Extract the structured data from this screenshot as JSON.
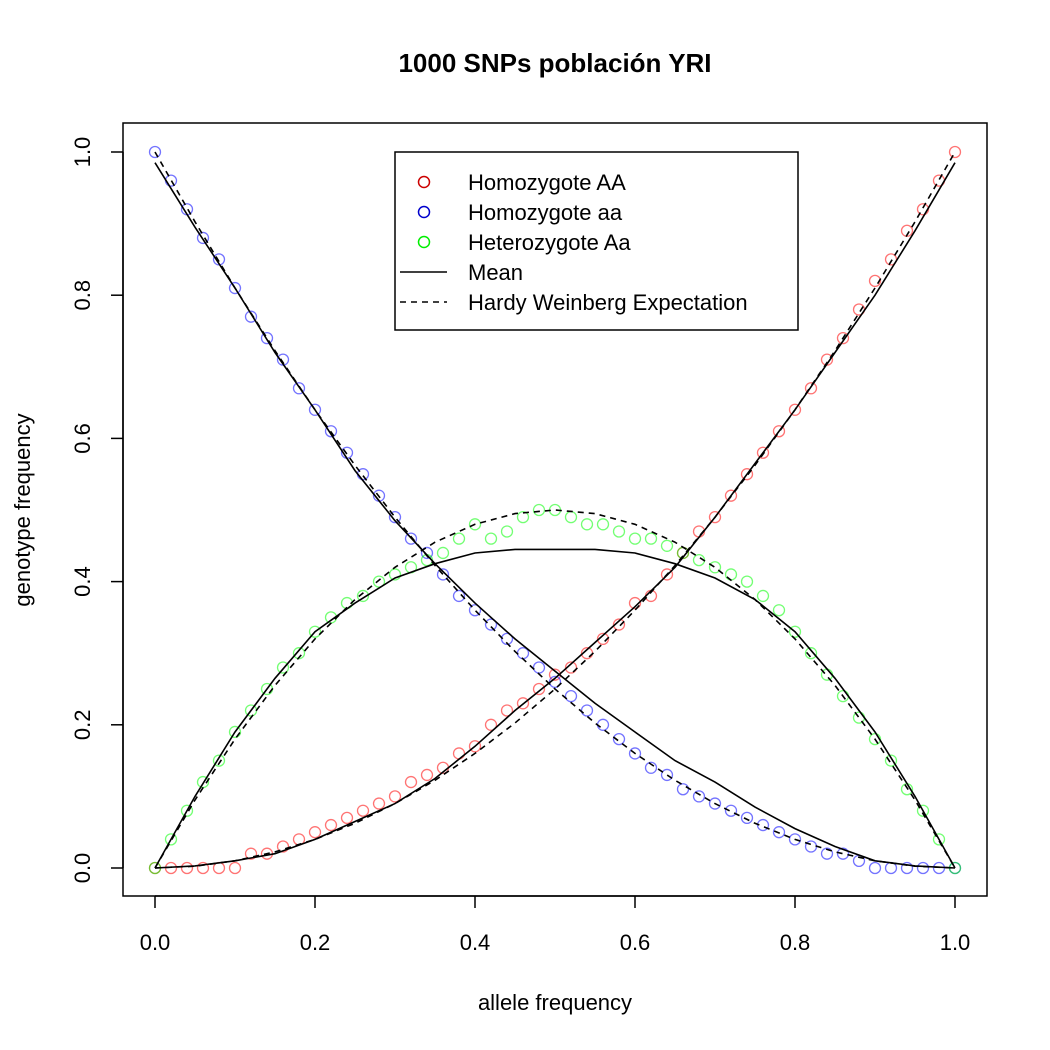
{
  "chart_data": {
    "type": "scatter",
    "title": "1000 SNPs población YRI",
    "xlabel": "allele frequency",
    "ylabel": "genotype frequency",
    "xlim": [
      0.0,
      1.0
    ],
    "ylim": [
      0.0,
      1.0
    ],
    "x_ticks": [
      "0.0",
      "0.2",
      "0.4",
      "0.6",
      "0.8",
      "1.0"
    ],
    "y_ticks": [
      "0.0",
      "0.2",
      "0.4",
      "0.6",
      "0.8",
      "1.0"
    ],
    "grid": false,
    "legend_position": "top-center",
    "legend": [
      {
        "label": "Homozygote AA",
        "kind": "point",
        "color": "#cc0000"
      },
      {
        "label": "Homozygote aa",
        "kind": "point",
        "color": "#0000cc"
      },
      {
        "label": "Heterozygote Aa",
        "kind": "point",
        "color": "#00ee00"
      },
      {
        "label": "Mean",
        "kind": "solid-line",
        "color": "#000000"
      },
      {
        "label": "Hardy Weinberg Expectation",
        "kind": "dashed-line",
        "color": "#000000"
      }
    ],
    "series": [
      {
        "name": "Homozygote AA",
        "color": "#ff0000",
        "points": [
          [
            0.0,
            0.0
          ],
          [
            0.02,
            0.0
          ],
          [
            0.04,
            0.0
          ],
          [
            0.06,
            0.0
          ],
          [
            0.08,
            0.0
          ],
          [
            0.1,
            0.0
          ],
          [
            0.12,
            0.02
          ],
          [
            0.14,
            0.02
          ],
          [
            0.16,
            0.03
          ],
          [
            0.18,
            0.04
          ],
          [
            0.2,
            0.05
          ],
          [
            0.22,
            0.06
          ],
          [
            0.24,
            0.07
          ],
          [
            0.26,
            0.08
          ],
          [
            0.28,
            0.09
          ],
          [
            0.3,
            0.1
          ],
          [
            0.32,
            0.12
          ],
          [
            0.34,
            0.13
          ],
          [
            0.36,
            0.14
          ],
          [
            0.38,
            0.16
          ],
          [
            0.4,
            0.17
          ],
          [
            0.42,
            0.2
          ],
          [
            0.44,
            0.22
          ],
          [
            0.46,
            0.23
          ],
          [
            0.48,
            0.25
          ],
          [
            0.5,
            0.27
          ],
          [
            0.52,
            0.28
          ],
          [
            0.54,
            0.3
          ],
          [
            0.56,
            0.32
          ],
          [
            0.58,
            0.34
          ],
          [
            0.6,
            0.37
          ],
          [
            0.62,
            0.38
          ],
          [
            0.64,
            0.41
          ],
          [
            0.66,
            0.44
          ],
          [
            0.68,
            0.47
          ],
          [
            0.7,
            0.49
          ],
          [
            0.72,
            0.52
          ],
          [
            0.74,
            0.55
          ],
          [
            0.76,
            0.58
          ],
          [
            0.78,
            0.61
          ],
          [
            0.8,
            0.64
          ],
          [
            0.82,
            0.67
          ],
          [
            0.84,
            0.71
          ],
          [
            0.86,
            0.74
          ],
          [
            0.88,
            0.78
          ],
          [
            0.9,
            0.82
          ],
          [
            0.92,
            0.85
          ],
          [
            0.94,
            0.89
          ],
          [
            0.96,
            0.92
          ],
          [
            0.98,
            0.96
          ],
          [
            1.0,
            1.0
          ]
        ]
      },
      {
        "name": "Homozygote aa",
        "color": "#0000ff",
        "points": [
          [
            0.0,
            1.0
          ],
          [
            0.02,
            0.96
          ],
          [
            0.04,
            0.92
          ],
          [
            0.06,
            0.88
          ],
          [
            0.08,
            0.85
          ],
          [
            0.1,
            0.81
          ],
          [
            0.12,
            0.77
          ],
          [
            0.14,
            0.74
          ],
          [
            0.16,
            0.71
          ],
          [
            0.18,
            0.67
          ],
          [
            0.2,
            0.64
          ],
          [
            0.22,
            0.61
          ],
          [
            0.24,
            0.58
          ],
          [
            0.26,
            0.55
          ],
          [
            0.28,
            0.52
          ],
          [
            0.3,
            0.49
          ],
          [
            0.32,
            0.46
          ],
          [
            0.34,
            0.44
          ],
          [
            0.36,
            0.41
          ],
          [
            0.38,
            0.38
          ],
          [
            0.4,
            0.36
          ],
          [
            0.42,
            0.34
          ],
          [
            0.44,
            0.32
          ],
          [
            0.46,
            0.3
          ],
          [
            0.48,
            0.28
          ],
          [
            0.5,
            0.26
          ],
          [
            0.52,
            0.24
          ],
          [
            0.54,
            0.22
          ],
          [
            0.56,
            0.2
          ],
          [
            0.58,
            0.18
          ],
          [
            0.6,
            0.16
          ],
          [
            0.62,
            0.14
          ],
          [
            0.64,
            0.13
          ],
          [
            0.66,
            0.11
          ],
          [
            0.68,
            0.1
          ],
          [
            0.7,
            0.09
          ],
          [
            0.72,
            0.08
          ],
          [
            0.74,
            0.07
          ],
          [
            0.76,
            0.06
          ],
          [
            0.78,
            0.05
          ],
          [
            0.8,
            0.04
          ],
          [
            0.82,
            0.03
          ],
          [
            0.84,
            0.02
          ],
          [
            0.86,
            0.02
          ],
          [
            0.88,
            0.01
          ],
          [
            0.9,
            0.0
          ],
          [
            0.92,
            0.0
          ],
          [
            0.94,
            0.0
          ],
          [
            0.96,
            0.0
          ],
          [
            0.98,
            0.0
          ],
          [
            1.0,
            0.0
          ]
        ]
      },
      {
        "name": "Heterozygote Aa",
        "color": "#00ff00",
        "points": [
          [
            0.0,
            0.0
          ],
          [
            0.02,
            0.04
          ],
          [
            0.04,
            0.08
          ],
          [
            0.06,
            0.12
          ],
          [
            0.08,
            0.15
          ],
          [
            0.1,
            0.19
          ],
          [
            0.12,
            0.22
          ],
          [
            0.14,
            0.25
          ],
          [
            0.16,
            0.28
          ],
          [
            0.18,
            0.3
          ],
          [
            0.2,
            0.33
          ],
          [
            0.22,
            0.35
          ],
          [
            0.24,
            0.37
          ],
          [
            0.26,
            0.38
          ],
          [
            0.28,
            0.4
          ],
          [
            0.3,
            0.41
          ],
          [
            0.32,
            0.42
          ],
          [
            0.34,
            0.43
          ],
          [
            0.36,
            0.44
          ],
          [
            0.38,
            0.46
          ],
          [
            0.4,
            0.48
          ],
          [
            0.42,
            0.46
          ],
          [
            0.44,
            0.47
          ],
          [
            0.46,
            0.49
          ],
          [
            0.48,
            0.5
          ],
          [
            0.5,
            0.5
          ],
          [
            0.52,
            0.49
          ],
          [
            0.54,
            0.48
          ],
          [
            0.56,
            0.48
          ],
          [
            0.58,
            0.47
          ],
          [
            0.6,
            0.46
          ],
          [
            0.62,
            0.46
          ],
          [
            0.64,
            0.45
          ],
          [
            0.66,
            0.44
          ],
          [
            0.68,
            0.43
          ],
          [
            0.7,
            0.42
          ],
          [
            0.72,
            0.41
          ],
          [
            0.74,
            0.4
          ],
          [
            0.76,
            0.38
          ],
          [
            0.78,
            0.36
          ],
          [
            0.8,
            0.33
          ],
          [
            0.82,
            0.3
          ],
          [
            0.84,
            0.27
          ],
          [
            0.86,
            0.24
          ],
          [
            0.88,
            0.21
          ],
          [
            0.9,
            0.18
          ],
          [
            0.92,
            0.15
          ],
          [
            0.94,
            0.11
          ],
          [
            0.96,
            0.08
          ],
          [
            0.98,
            0.04
          ],
          [
            1.0,
            0.0
          ]
        ]
      },
      {
        "name": "Mean",
        "line": "solid",
        "color": "#000000",
        "curves": [
          [
            [
              0.0,
              0.0
            ],
            [
              0.05,
              0.003
            ],
            [
              0.1,
              0.01
            ],
            [
              0.15,
              0.02
            ],
            [
              0.2,
              0.04
            ],
            [
              0.25,
              0.065
            ],
            [
              0.3,
              0.09
            ],
            [
              0.35,
              0.125
            ],
            [
              0.4,
              0.17
            ],
            [
              0.45,
              0.22
            ],
            [
              0.5,
              0.265
            ],
            [
              0.55,
              0.315
            ],
            [
              0.6,
              0.365
            ],
            [
              0.65,
              0.42
            ],
            [
              0.7,
              0.49
            ],
            [
              0.75,
              0.565
            ],
            [
              0.8,
              0.64
            ],
            [
              0.85,
              0.72
            ],
            [
              0.9,
              0.8
            ],
            [
              0.95,
              0.89
            ],
            [
              1.0,
              0.985
            ]
          ],
          [
            [
              0.0,
              0.985
            ],
            [
              0.05,
              0.895
            ],
            [
              0.1,
              0.81
            ],
            [
              0.15,
              0.72
            ],
            [
              0.2,
              0.64
            ],
            [
              0.25,
              0.555
            ],
            [
              0.3,
              0.485
            ],
            [
              0.35,
              0.425
            ],
            [
              0.4,
              0.37
            ],
            [
              0.45,
              0.32
            ],
            [
              0.5,
              0.275
            ],
            [
              0.55,
              0.23
            ],
            [
              0.6,
              0.19
            ],
            [
              0.65,
              0.15
            ],
            [
              0.7,
              0.12
            ],
            [
              0.75,
              0.085
            ],
            [
              0.8,
              0.055
            ],
            [
              0.85,
              0.03
            ],
            [
              0.9,
              0.01
            ],
            [
              0.95,
              0.003
            ],
            [
              1.0,
              0.0
            ]
          ],
          [
            [
              0.0,
              0.0
            ],
            [
              0.05,
              0.1
            ],
            [
              0.1,
              0.19
            ],
            [
              0.15,
              0.265
            ],
            [
              0.2,
              0.33
            ],
            [
              0.25,
              0.37
            ],
            [
              0.3,
              0.405
            ],
            [
              0.35,
              0.425
            ],
            [
              0.4,
              0.44
            ],
            [
              0.45,
              0.445
            ],
            [
              0.5,
              0.445
            ],
            [
              0.55,
              0.445
            ],
            [
              0.6,
              0.44
            ],
            [
              0.65,
              0.425
            ],
            [
              0.7,
              0.405
            ],
            [
              0.75,
              0.375
            ],
            [
              0.8,
              0.33
            ],
            [
              0.85,
              0.265
            ],
            [
              0.9,
              0.19
            ],
            [
              0.95,
              0.1
            ],
            [
              1.0,
              0.0
            ]
          ]
        ]
      },
      {
        "name": "Hardy Weinberg Expectation",
        "line": "dashed",
        "color": "#000000",
        "curves": [
          [
            [
              0.0,
              0.0
            ],
            [
              0.05,
              0.0025
            ],
            [
              0.1,
              0.01
            ],
            [
              0.15,
              0.0225
            ],
            [
              0.2,
              0.04
            ],
            [
              0.25,
              0.0625
            ],
            [
              0.3,
              0.09
            ],
            [
              0.35,
              0.1225
            ],
            [
              0.4,
              0.16
            ],
            [
              0.45,
              0.2025
            ],
            [
              0.5,
              0.25
            ],
            [
              0.55,
              0.3025
            ],
            [
              0.6,
              0.36
            ],
            [
              0.65,
              0.4225
            ],
            [
              0.7,
              0.49
            ],
            [
              0.75,
              0.5625
            ],
            [
              0.8,
              0.64
            ],
            [
              0.85,
              0.7225
            ],
            [
              0.9,
              0.81
            ],
            [
              0.95,
              0.9025
            ],
            [
              1.0,
              1.0
            ]
          ],
          [
            [
              0.0,
              1.0
            ],
            [
              0.05,
              0.9025
            ],
            [
              0.1,
              0.81
            ],
            [
              0.15,
              0.7225
            ],
            [
              0.2,
              0.64
            ],
            [
              0.25,
              0.5625
            ],
            [
              0.3,
              0.49
            ],
            [
              0.35,
              0.4225
            ],
            [
              0.4,
              0.36
            ],
            [
              0.45,
              0.3025
            ],
            [
              0.5,
              0.25
            ],
            [
              0.55,
              0.2025
            ],
            [
              0.6,
              0.16
            ],
            [
              0.65,
              0.1225
            ],
            [
              0.7,
              0.09
            ],
            [
              0.75,
              0.0625
            ],
            [
              0.8,
              0.04
            ],
            [
              0.85,
              0.0225
            ],
            [
              0.9,
              0.01
            ],
            [
              0.95,
              0.0025
            ],
            [
              1.0,
              0.0
            ]
          ],
          [
            [
              0.0,
              0.0
            ],
            [
              0.05,
              0.095
            ],
            [
              0.1,
              0.18
            ],
            [
              0.15,
              0.255
            ],
            [
              0.2,
              0.32
            ],
            [
              0.25,
              0.375
            ],
            [
              0.3,
              0.42
            ],
            [
              0.35,
              0.455
            ],
            [
              0.4,
              0.48
            ],
            [
              0.45,
              0.495
            ],
            [
              0.5,
              0.5
            ],
            [
              0.55,
              0.495
            ],
            [
              0.6,
              0.48
            ],
            [
              0.65,
              0.455
            ],
            [
              0.7,
              0.42
            ],
            [
              0.75,
              0.375
            ],
            [
              0.8,
              0.32
            ],
            [
              0.85,
              0.255
            ],
            [
              0.9,
              0.18
            ],
            [
              0.95,
              0.095
            ],
            [
              1.0,
              0.0
            ]
          ]
        ]
      }
    ]
  }
}
